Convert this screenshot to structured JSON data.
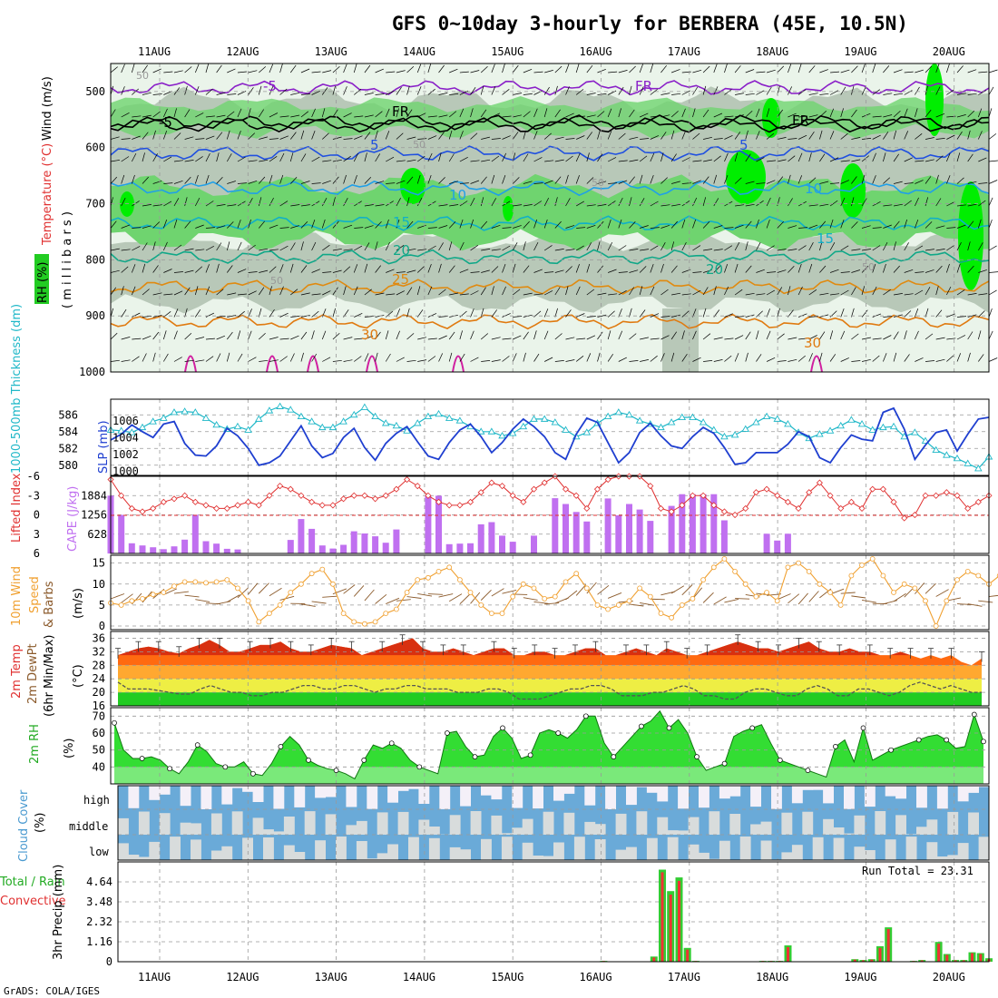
{
  "title": "GFS 0~10day 3-hourly for BERBERA (45E, 10.5N)",
  "footer": "GrADS: COLA/IGES",
  "dates": [
    "11AUG",
    "12AUG",
    "13AUG",
    "14AUG",
    "15AUG",
    "16AUG",
    "17AUG",
    "18AUG",
    "19AUG",
    "20AUG"
  ],
  "colors": {
    "grid": "#999999",
    "rh_light": "#eaf4ea",
    "rh_gray": "#b8c8b8",
    "rh_green": "#6fd46f",
    "rh_bright": "#00ee00",
    "slp": "#1f3fd0",
    "thickness": "#20b8c8",
    "lifted": "#e03030",
    "cape": "#c070f0",
    "wind": "#f0a030",
    "barb": "#8b5a2b",
    "rh2m": "#33dd33",
    "cloud": "#6aaad8",
    "precip_total": "#33cc33",
    "precip_conv": "#ee3333"
  },
  "panels": {
    "upper": {
      "yticks": [
        "500",
        "600",
        "700",
        "800",
        "900",
        "1000"
      ],
      "ylabels": {
        "wind": "Wind (m/s)",
        "temp": "Temperature (°C)",
        "rh": "RH (%)",
        "mb": "( m i l l i b a r s )"
      },
      "contour_labels": [
        "-5",
        "FR",
        "-5",
        "FR",
        "FR",
        "5",
        "5",
        "10",
        "10",
        "15",
        "15",
        "20",
        "20",
        "25",
        "30",
        "30",
        "50",
        "50",
        "50",
        "50",
        "50"
      ]
    },
    "slp": {
      "label_left": "1000-500mb Thickness (dm)",
      "label_right": "SLP (mb)",
      "left_ticks": [
        "586",
        "584",
        "582",
        "580"
      ],
      "right_ticks": [
        "1006",
        "1004",
        "1002",
        "1000"
      ]
    },
    "cape": {
      "label_li": "Lifted Index",
      "label_cape": "CAPE (J/kg)",
      "li_ticks": [
        "-6",
        "-3",
        "0",
        "3",
        "6"
      ],
      "cape_ticks": [
        "1884",
        "1256",
        "628"
      ]
    },
    "wind10": {
      "label1": "10m Wind",
      "label2": "Speed",
      "label3": "& Barbs",
      "label4": "(m/s)",
      "ticks": [
        "15",
        "10",
        "5",
        "0"
      ]
    },
    "temp2m": {
      "label1": "2m Temp",
      "label2": "2m DewPt",
      "label3": "(6hr Min/Max)",
      "label4": "(°C)",
      "ticks": [
        "36",
        "32",
        "28",
        "24",
        "20",
        "16"
      ]
    },
    "rh2m": {
      "label1": "2m RH",
      "label2": "(%)",
      "ticks": [
        "70",
        "60",
        "50",
        "40"
      ]
    },
    "cloud": {
      "label1": "Cloud Cover",
      "label2": "(%)",
      "levels": [
        "high",
        "middle",
        "low"
      ]
    },
    "precip": {
      "label1": "Total / Rain",
      "label2": "Convective",
      "label3": "3hr Precip (mm)",
      "ticks": [
        "4.64",
        "3.48",
        "2.32",
        "1.16",
        "0"
      ],
      "run_total": "Run Total = 23.31"
    }
  },
  "chart_data": [
    {
      "type": "line",
      "name": "slp_thickness",
      "x_unit": "3-hour steps from 11AUG 00Z minus 6h",
      "series": [
        {
          "name": "SLP (mb)",
          "values": [
            1003.5,
            1004.2,
            1005.3,
            1004.5,
            1003.8,
            1005.4,
            1005.7,
            1003.1,
            1001.7,
            1001.6,
            1002.8,
            1004.9,
            1004.0,
            1002.5,
            1000.5,
            1000.8,
            1001.6,
            1003.4,
            1005.2,
            1002.8,
            1001.4,
            1001.9,
            1003.8,
            1004.9,
            1002.6,
            1001.1,
            1003.1,
            1004.3,
            1005.1,
            1003.3,
            1001.6,
            1001.2,
            1003.2,
            1004.7,
            1005.4,
            1003.9,
            1002.0,
            1003.2,
            1004.8,
            1006.0,
            1005.1,
            1003.9,
            1002.0,
            1001.2,
            1004.2,
            1006.1,
            1005.6,
            1003.2,
            1000.8,
            1002.0,
            1004.4,
            1005.5,
            1004.0,
            1002.8,
            1002.5,
            1003.9,
            1005.0,
            1004.3,
            1002.6,
            1000.6,
            1000.8,
            1002.0,
            1002.0,
            1002.0,
            1003.0,
            1004.5,
            1003.9,
            1001.4,
            1000.8,
            1002.6,
            1004.1,
            1003.6,
            1003.4,
            1006.8,
            1007.3,
            1004.8,
            1001.2,
            1002.9,
            1004.4,
            1004.7,
            1002.2,
            1004.2,
            1006.0,
            1006.2
          ]
        },
        {
          "name": "Thickness (dm)",
          "values": [
            584.2,
            584.1,
            583.9,
            584.5,
            585.2,
            585.6,
            586.3,
            586.4,
            586.3,
            585.6,
            584.8,
            584.3,
            584.6,
            584.2,
            585.5,
            586.5,
            587.0,
            586.6,
            585.8,
            585.2,
            584.5,
            584.5,
            585.2,
            586.0,
            586.9,
            585.8,
            585.0,
            584.7,
            584.1,
            585.0,
            585.8,
            586.1,
            585.6,
            585.3,
            584.6,
            584.0,
            584.0,
            583.5,
            583.8,
            584.6,
            585.5,
            585.5,
            585.1,
            584.2,
            583.4,
            583.9,
            585.0,
            585.8,
            586.3,
            586.0,
            585.3,
            584.9,
            584.5,
            585.1,
            585.7,
            585.7,
            585.1,
            584.2,
            583.4,
            583.6,
            584.3,
            585.1,
            585.8,
            585.5,
            584.9,
            583.9,
            583.2,
            583.7,
            584.1,
            584.7,
            585.4,
            584.9,
            584.2,
            584.5,
            584.6,
            583.4,
            583.9,
            582.9,
            581.8,
            581.2,
            580.8,
            580.2,
            579.6,
            581.0
          ]
        }
      ]
    },
    {
      "type": "bar",
      "name": "cape_lifted_index",
      "series": [
        {
          "name": "CAPE (J/kg)",
          "values": [
            1884,
            1256,
            330,
            260,
            200,
            140,
            230,
            450,
            1260,
            400,
            320,
            150,
            130,
            0,
            0,
            0,
            0,
            440,
            1120,
            800,
            260,
            160,
            280,
            720,
            650,
            560,
            350,
            780,
            0,
            0,
            1880,
            1880,
            300,
            320,
            330,
            950,
            1020,
            580,
            380,
            0,
            580,
            0,
            1800,
            1610,
            1350,
            1040,
            0,
            1790,
            1240,
            1610,
            1430,
            1060,
            0,
            1550,
            1930,
            1930,
            1930,
            1930,
            1080,
            0,
            0,
            0,
            640,
            420,
            640,
            0,
            0,
            0,
            0,
            0,
            0,
            0,
            0,
            0,
            0,
            0,
            0,
            0,
            0,
            0,
            0,
            0,
            0,
            0
          ]
        },
        {
          "name": "Lifted Index",
          "values": [
            -5.5,
            -3,
            -1,
            -0.5,
            -1,
            -2,
            -2.5,
            -3,
            -2,
            -1.5,
            -1,
            -1,
            -1.5,
            -2,
            -1.5,
            -3,
            -4.5,
            -4,
            -3,
            -2,
            -1.5,
            -1.5,
            -2.5,
            -3,
            -3,
            -2.5,
            -3,
            -4,
            -5.5,
            -4.5,
            -3,
            -2,
            -1.5,
            -1.5,
            -2,
            -3.5,
            -5,
            -4.5,
            -3,
            -2,
            -4,
            -5,
            -6,
            -4,
            -3,
            -1,
            -4,
            -5.5,
            -6,
            -6,
            -6,
            -4.5,
            -1,
            -0.5,
            -1.5,
            -3,
            -3,
            -1.5,
            -0.5,
            0,
            -1,
            -3.5,
            -4,
            -3,
            -2,
            -1,
            -3.5,
            -5,
            -3,
            -1,
            -2,
            -1,
            -4,
            -4,
            -2,
            0.5,
            0,
            -3,
            -3,
            -3.5,
            -3,
            -1,
            -2,
            -3
          ]
        }
      ],
      "cape_ylim": [
        0,
        2512
      ],
      "li_ylim": [
        6,
        -6
      ]
    },
    {
      "type": "line",
      "name": "wind10m_speed",
      "ylim": [
        0,
        16
      ],
      "values": [
        5.5,
        5,
        6,
        6.5,
        7.5,
        8,
        9.5,
        10.5,
        10.5,
        10.3,
        10.5,
        11,
        9,
        6,
        1,
        3,
        5,
        8,
        10,
        12.5,
        13.5,
        10,
        3,
        1,
        0.5,
        1,
        3,
        4,
        8,
        11,
        11.5,
        13,
        14,
        11,
        8,
        5,
        3,
        3,
        7,
        10,
        9,
        6.5,
        7,
        10.5,
        12.5,
        9,
        5,
        4,
        5,
        6,
        9,
        7,
        3,
        2,
        5,
        6.5,
        11,
        14,
        16,
        13,
        10,
        7,
        8,
        6,
        14,
        15,
        13,
        10,
        8,
        5,
        12,
        14.5,
        16,
        12,
        8,
        10,
        9,
        6,
        0,
        6,
        11,
        13,
        12,
        10,
        12,
        13,
        14
      ]
    },
    {
      "type": "area",
      "name": "temp2m",
      "ylim": [
        16,
        38
      ],
      "series": [
        {
          "name": "2m Temp",
          "values": [
            31,
            32,
            33,
            33.5,
            33,
            32,
            31.5,
            33,
            34,
            35.5,
            34,
            32,
            32,
            33,
            34,
            34,
            35,
            33,
            32,
            32,
            33,
            34,
            33.5,
            33,
            31,
            32,
            33,
            34,
            35,
            36,
            33,
            32,
            32,
            33,
            32,
            31,
            32,
            33,
            33,
            31,
            31,
            32,
            32,
            31,
            31,
            32,
            33,
            33,
            31,
            31,
            32,
            33,
            32,
            31,
            33,
            32,
            31,
            31,
            32,
            33,
            34,
            35,
            34,
            33,
            33,
            32,
            33,
            34,
            35,
            33,
            32,
            32,
            33,
            32,
            32,
            31,
            31,
            32,
            31,
            30,
            31,
            30,
            31,
            29,
            28,
            30
          ]
        },
        {
          "name": "2m DewPt",
          "values": [
            23,
            21,
            21,
            21,
            20.5,
            20,
            19.5,
            19.5,
            21,
            22,
            21,
            20,
            20,
            19,
            19,
            20,
            20,
            21,
            22,
            22,
            21,
            21,
            22,
            22,
            21,
            20,
            21,
            21,
            22,
            22,
            21,
            21,
            21,
            20,
            20,
            20,
            21,
            21,
            20,
            18,
            18,
            18,
            19,
            20,
            21,
            21,
            22,
            22,
            21,
            19,
            19,
            19,
            20,
            20,
            21,
            22,
            21,
            19,
            19,
            18,
            18,
            20,
            21,
            21,
            20,
            19,
            19,
            21,
            22,
            21,
            19,
            19,
            21,
            21,
            20,
            19,
            20,
            22,
            23,
            22,
            21,
            22,
            21,
            20,
            20
          ]
        }
      ]
    },
    {
      "type": "area",
      "name": "rh2m",
      "ylim": [
        30,
        75
      ],
      "values": [
        66,
        50,
        45,
        45,
        46,
        44,
        39,
        36,
        43,
        53,
        49,
        42,
        40,
        40,
        43,
        36,
        35,
        42,
        52,
        58,
        53,
        44,
        41,
        39,
        38,
        36,
        33,
        44,
        53,
        51,
        54,
        51,
        44,
        40,
        38,
        36,
        60,
        61,
        52,
        46,
        47,
        58,
        63,
        57,
        45,
        47,
        60,
        62,
        60,
        57,
        62,
        70,
        70,
        54,
        46,
        52,
        58,
        64,
        67,
        73,
        63,
        68,
        60,
        46,
        38,
        40,
        42,
        58,
        61,
        63,
        65,
        54,
        44,
        42,
        40,
        38,
        36,
        34,
        52,
        56,
        43,
        63,
        44,
        47,
        50,
        52,
        54,
        56,
        58,
        59,
        56,
        51,
        52,
        71,
        55
      ]
    },
    {
      "type": "bar",
      "name": "precip3hr",
      "ylim": [
        0,
        5.8
      ],
      "series": [
        {
          "name": "Total",
          "values": [
            0,
            0,
            0,
            0,
            0,
            0,
            0,
            0,
            0,
            0,
            0,
            0,
            0,
            0,
            0,
            0,
            0,
            0,
            0,
            0,
            0,
            0,
            0,
            0,
            0,
            0,
            0,
            0,
            0,
            0,
            0,
            0,
            0,
            0,
            0,
            0,
            0,
            0,
            0,
            0,
            0,
            0,
            0,
            0,
            0,
            0,
            0,
            0,
            0,
            0,
            0,
            0,
            0,
            0,
            0,
            0,
            0,
            0,
            0.05,
            0,
            0,
            0,
            0,
            0,
            0.3,
            5.35,
            4.1,
            4.9,
            0.8,
            0.05,
            0,
            0,
            0,
            0,
            0,
            0,
            0,
            0.05,
            0.05,
            0.05,
            0.95,
            0,
            0,
            0,
            0,
            0,
            0,
            0,
            0.15,
            0.1,
            0.15,
            0.9,
            2.0,
            0,
            0,
            0.05,
            0.1,
            0,
            1.15,
            0.45,
            0.1,
            0.1,
            0.55,
            0.5,
            0.2
          ]
        },
        {
          "name": "Convective",
          "values": [
            0,
            0,
            0,
            0,
            0,
            0,
            0,
            0,
            0,
            0,
            0,
            0,
            0,
            0,
            0,
            0,
            0,
            0,
            0,
            0,
            0,
            0,
            0,
            0,
            0,
            0,
            0,
            0,
            0,
            0,
            0,
            0,
            0,
            0,
            0,
            0,
            0,
            0,
            0,
            0,
            0,
            0,
            0,
            0,
            0,
            0,
            0,
            0,
            0,
            0,
            0,
            0,
            0,
            0,
            0,
            0,
            0,
            0,
            0.04,
            0,
            0,
            0,
            0,
            0,
            0.25,
            5.2,
            3.9,
            4.7,
            0.7,
            0.04,
            0,
            0,
            0,
            0,
            0,
            0,
            0,
            0.04,
            0.04,
            0.04,
            0.85,
            0,
            0,
            0,
            0,
            0,
            0,
            0,
            0.12,
            0.08,
            0.12,
            0.8,
            1.9,
            0,
            0,
            0.04,
            0.08,
            0,
            1.05,
            0.4,
            0.08,
            0.08,
            0.5,
            0.45,
            0.15
          ]
        }
      ]
    }
  ]
}
